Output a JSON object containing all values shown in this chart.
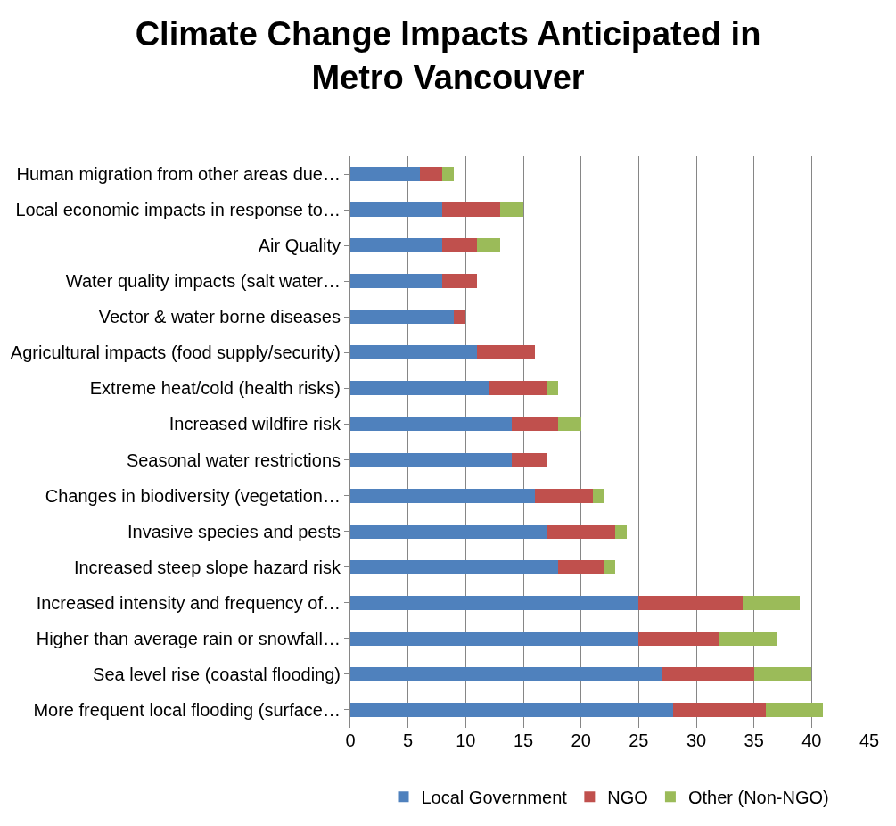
{
  "chart_data": {
    "type": "bar",
    "orientation": "horizontal",
    "stacked": true,
    "title": "Climate Change Impacts Anticipated in Metro Vancouver",
    "categories": [
      "Human migration from other areas due…",
      "Local economic impacts in response to…",
      "Air Quality",
      "Water quality impacts (salt water…",
      "Vector & water borne diseases",
      "Agricultural impacts (food supply/security)",
      "Extreme heat/cold (health risks)",
      "Increased wildfire risk",
      "Seasonal water restrictions",
      "Changes in biodiversity (vegetation…",
      "Invasive species and pests",
      "Increased steep slope hazard risk",
      "Increased intensity and frequency of…",
      "Higher than average rain or snowfall…",
      "Sea level rise (coastal flooding)",
      "More frequent local flooding (surface…"
    ],
    "series": [
      {
        "name": "Local Government",
        "color": "#4f81bd",
        "values": [
          6,
          8,
          8,
          8,
          9,
          11,
          12,
          14,
          14,
          16,
          17,
          18,
          25,
          25,
          27,
          28
        ]
      },
      {
        "name": "NGO",
        "color": "#c0504d",
        "values": [
          2,
          5,
          3,
          3,
          1,
          5,
          5,
          4,
          3,
          5,
          6,
          4,
          9,
          7,
          8,
          8
        ]
      },
      {
        "name": "Other (Non-NGO)",
        "color": "#9bbb59",
        "values": [
          1,
          2,
          2,
          0,
          0,
          0,
          1,
          2,
          0,
          1,
          1,
          1,
          5,
          5,
          5,
          5
        ]
      }
    ],
    "xlim": [
      0,
      45
    ],
    "xticks": [
      0,
      5,
      10,
      15,
      20,
      25,
      30,
      35,
      40,
      45
    ],
    "grid": "x",
    "legend": "bottom"
  }
}
